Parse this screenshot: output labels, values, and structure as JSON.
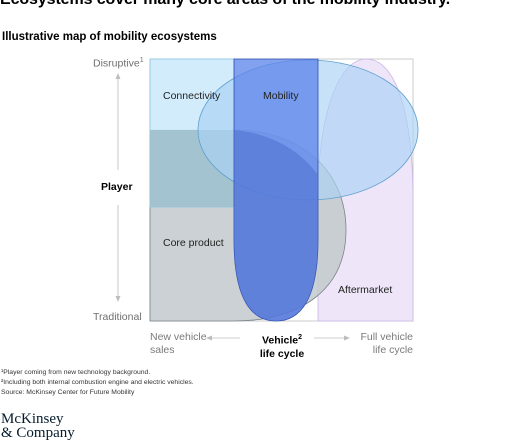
{
  "headline": "Ecosystems cover many core areas of the mobility industry.",
  "subtitle": "Illustrative map of mobility ecosystems",
  "y_axis": {
    "label": "Player",
    "top": "Disruptive",
    "top_marker": "1",
    "bottom": "Traditional"
  },
  "x_axis": {
    "label": "Vehicle",
    "label_marker": "2",
    "label_line2": "life cycle",
    "left": "New vehicle",
    "left_line2": "sales",
    "right": "Full vehicle",
    "right_line2": "life cycle"
  },
  "regions": {
    "connectivity": "Connectivity",
    "mobility": "Mobility",
    "core_product": "Core product",
    "aftermarket": "Aftermarket"
  },
  "colors": {
    "connectivity": "#cdeafb",
    "mobility": "#6f95ef",
    "core_product": "#c2c9cc",
    "aftermarket": "#eee6f8",
    "overlay_blue": "#4f77e0"
  },
  "footnotes": [
    "¹Player coming from new technology background.",
    "²Including both internal combustion engine and electric vehicles.",
    "Source: McKinsey Center for Future Mobility"
  ],
  "logo": {
    "line1": "McKinsey",
    "line2": "& Company"
  }
}
